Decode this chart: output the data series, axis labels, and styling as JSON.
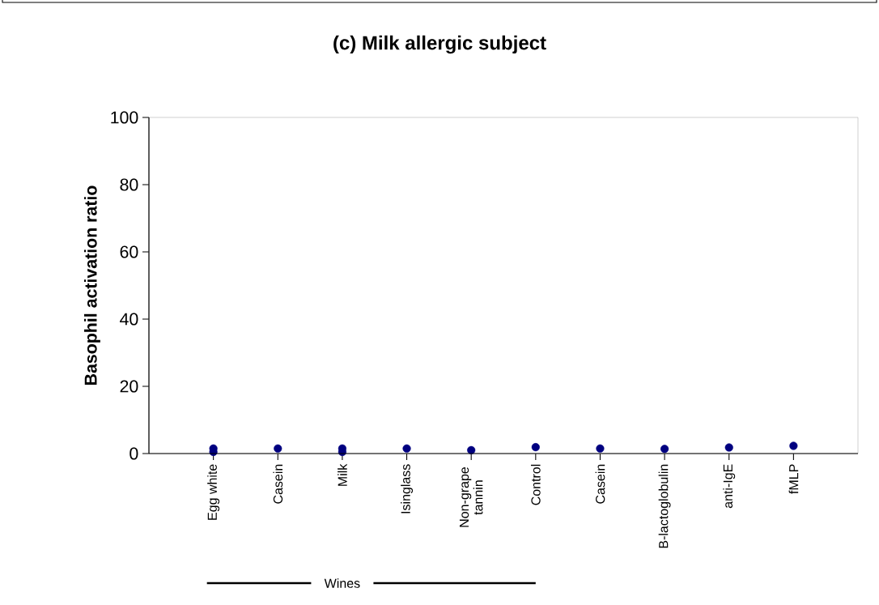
{
  "chart_data": {
    "type": "scatter",
    "title": "(c) Milk allergic subject",
    "ylabel": "Basophil activation ratio",
    "categories": [
      "Egg white",
      "Casein",
      "Milk",
      "Isinglass",
      "Non-grape tannin",
      "Control",
      "Casein",
      "B-lactoglobulin",
      "anti-IgE",
      "fMLP"
    ],
    "series": [
      {
        "color": "#000080",
        "values": [
          1.5,
          1.5,
          1.5,
          1.5,
          1.0,
          1.9,
          1.5,
          1.4,
          1.8,
          2.3
        ]
      },
      {
        "color": "#000080",
        "values": [
          0.5,
          null,
          0.5,
          null,
          null,
          null,
          null,
          null,
          null,
          null
        ]
      }
    ],
    "ylim": [
      0,
      100
    ],
    "yticks": [
      0,
      20,
      40,
      60,
      80,
      100
    ],
    "marker": "circle",
    "grid": false,
    "annotations": [
      "Wines"
    ]
  }
}
